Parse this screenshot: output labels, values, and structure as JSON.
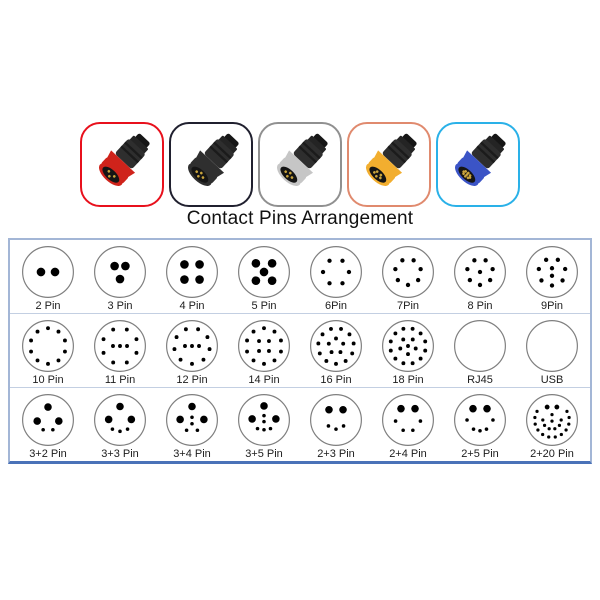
{
  "page": {
    "title": "Contact Pins Arrangement"
  },
  "product_images": [
    {
      "name": "red-connector",
      "border_color": "#e8101c",
      "ring_color": "#cf231b",
      "pin_count": 3
    },
    {
      "name": "black-connector",
      "border_color": "#20202f",
      "ring_color": "#2f2f2f",
      "pin_count": 4
    },
    {
      "name": "silver-connector",
      "border_color": "#909090",
      "ring_color": "#c6c6c6",
      "pin_count": 4
    },
    {
      "name": "yellow-connector",
      "border_color": "#e08a6e",
      "ring_color": "#f2ae2f",
      "pin_count": 5
    },
    {
      "name": "blue-connector",
      "border_color": "#2ab1e8",
      "ring_color": "#3b54c6",
      "pin_count": 9
    }
  ],
  "pin_table": {
    "border_color": "#a3b6d6",
    "bottom_border_color": "#4a72b8",
    "divider_color": "#c3cfe2",
    "circle_outline_color": "#7f7f7f",
    "dot_color": "#000000",
    "rows": [
      [
        {
          "label": "2 Pin",
          "dots": [
            [
              37,
              50,
              8
            ],
            [
              63,
              50,
              8
            ]
          ]
        },
        {
          "label": "3 Pin",
          "dots": [
            [
              40,
              39,
              8
            ],
            [
              60,
              39,
              8
            ],
            [
              50,
              63,
              8
            ]
          ]
        },
        {
          "label": "4 Pin",
          "dots": [
            [
              36,
              36,
              8
            ],
            [
              64,
              36,
              8
            ],
            [
              36,
              64,
              8
            ],
            [
              64,
              64,
              8
            ]
          ]
        },
        {
          "label": "5 Pin",
          "dots": [
            [
              35,
              34,
              8
            ],
            [
              65,
              34,
              8
            ],
            [
              50,
              50,
              8
            ],
            [
              35,
              66,
              8
            ],
            [
              65,
              66,
              8
            ]
          ]
        },
        {
          "label": "6Pin",
          "rings": [
            {
              "n": 6,
              "r": 24,
              "a0": 30,
              "s": 4
            }
          ]
        },
        {
          "label": "7Pin",
          "rings": [
            {
              "n": 7,
              "r": 24,
              "a0": 180,
              "s": 4
            }
          ]
        },
        {
          "label": "8 Pin",
          "rings": [
            {
              "n": 7,
              "r": 24,
              "a0": 180,
              "s": 4
            }
          ],
          "dots": [
            [
              50,
              50,
              4
            ]
          ]
        },
        {
          "label": "9Pin",
          "rings": [
            {
              "n": 7,
              "r": 25,
              "a0": 180,
              "s": 4
            }
          ],
          "dots": [
            [
              50,
              43,
              4
            ],
            [
              50,
              57,
              4
            ]
          ]
        }
      ],
      [
        {
          "label": "10 Pin",
          "rings": [
            {
              "n": 10,
              "r": 33,
              "a0": 180,
              "s": 3.6
            }
          ]
        },
        {
          "label": "11 Pin",
          "rings": [
            {
              "n": 8,
              "r": 33,
              "a0": 157.5,
              "s": 3.6
            }
          ],
          "dots": [
            [
              37,
              50,
              3.6
            ],
            [
              50,
              50,
              3.6
            ],
            [
              63,
              50,
              3.6
            ]
          ]
        },
        {
          "label": "12 Pin",
          "rings": [
            {
              "n": 9,
              "r": 33,
              "a0": 180,
              "s": 3.6
            }
          ],
          "dots": [
            [
              37,
              50,
              3.6
            ],
            [
              50,
              50,
              3.6
            ],
            [
              63,
              50,
              3.6
            ]
          ]
        },
        {
          "label": "14 Pin",
          "rings": [
            {
              "n": 10,
              "r": 33,
              "a0": 180,
              "s": 3.6
            },
            {
              "n": 4,
              "r": 13,
              "a0": -45,
              "s": 3.6
            }
          ]
        },
        {
          "label": "16 Pin",
          "rings": [
            {
              "n": 11,
              "r": 33,
              "a0": 180,
              "s": 3.6
            },
            {
              "n": 5,
              "r": 14,
              "a0": 0,
              "s": 3.6
            }
          ]
        },
        {
          "label": "18 Pin",
          "rings": [
            {
              "n": 12,
              "r": 33,
              "a0": 15,
              "s": 3.6
            },
            {
              "n": 5,
              "r": 15,
              "a0": 36,
              "s": 3.6
            }
          ],
          "dots": [
            [
              50,
              50,
              3.6
            ]
          ]
        },
        {
          "label": "RJ45",
          "icon": "rj45"
        },
        {
          "label": "USB",
          "icon": "usb"
        }
      ],
      [
        {
          "label": "3+2 Pin",
          "dots": [
            [
              50,
              26,
              7
            ],
            [
              30,
              52,
              7
            ],
            [
              70,
              52,
              7
            ],
            [
              41,
              68,
              3.3
            ],
            [
              59,
              68,
              3.3
            ]
          ]
        },
        {
          "label": "3+3 Pin",
          "dots": [
            [
              50,
              25,
              7
            ],
            [
              29,
              49,
              7
            ],
            [
              71,
              49,
              7
            ],
            [
              36,
              67,
              3.3
            ],
            [
              50,
              71,
              3.3
            ],
            [
              64,
              67,
              3.3
            ]
          ]
        },
        {
          "label": "3+4 Pin",
          "dots": [
            [
              50,
              25,
              7
            ],
            [
              28,
              49,
              7
            ],
            [
              72,
              49,
              7
            ],
            [
              50,
              45,
              3.3
            ],
            [
              50,
              57,
              3.3
            ],
            [
              40,
              69,
              3.3
            ],
            [
              60,
              69,
              3.3
            ]
          ]
        },
        {
          "label": "3+5 Pin",
          "dots": [
            [
              50,
              24,
              7
            ],
            [
              28,
              48,
              7
            ],
            [
              72,
              48,
              7
            ],
            [
              50,
              42,
              3.3
            ],
            [
              50,
              53,
              3.3
            ],
            [
              38,
              66,
              3.3
            ],
            [
              50,
              68,
              3.3
            ],
            [
              62,
              66,
              3.3
            ]
          ]
        },
        {
          "label": "2+3 Pin",
          "dots": [
            [
              37,
              31,
              7
            ],
            [
              63,
              31,
              7
            ],
            [
              36,
              61,
              3.3
            ],
            [
              50,
              67,
              3.3
            ],
            [
              64,
              61,
              3.3
            ]
          ]
        },
        {
          "label": "2+4 Pin",
          "dots": [
            [
              37,
              29,
              7
            ],
            [
              63,
              29,
              7
            ],
            [
              27,
              52,
              3.3
            ],
            [
              73,
              52,
              3.3
            ],
            [
              41,
              69,
              3.3
            ],
            [
              59,
              69,
              3.3
            ]
          ]
        },
        {
          "label": "2+5 Pin",
          "dots": [
            [
              37,
              29,
              7
            ],
            [
              63,
              29,
              7
            ],
            [
              26,
              50,
              3.3
            ],
            [
              74,
              50,
              3.3
            ],
            [
              38,
              67,
              3.3
            ],
            [
              50,
              70,
              3.3
            ],
            [
              62,
              67,
              3.3
            ]
          ]
        },
        {
          "label": "2+20 Pin",
          "dots": [
            [
              41,
              26,
              4.5
            ],
            [
              59,
              26,
              4.5
            ],
            [
              50,
              40,
              3
            ],
            [
              50,
              52,
              3
            ]
          ],
          "rings": [
            {
              "n": 12,
              "r": 32,
              "a0": 60,
              "span": 240,
              "s": 3
            },
            {
              "n": 6,
              "r": 17,
              "a0": 90,
              "span": 180,
              "s": 3
            }
          ]
        }
      ]
    ]
  }
}
